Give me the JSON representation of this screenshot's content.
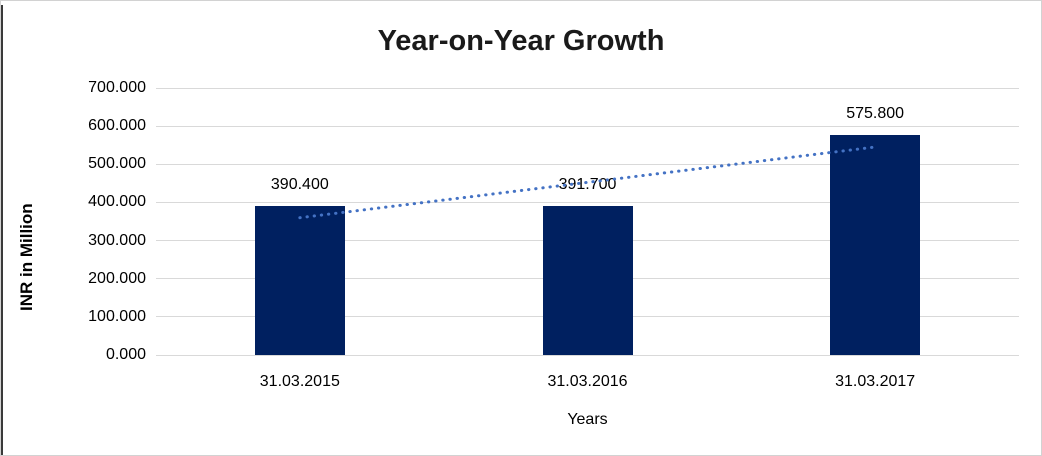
{
  "page": {
    "background": "#ffffff",
    "frame_border_color": "#d2d2d2",
    "left_edge_color": "#3a3a3a"
  },
  "chart_data": {
    "type": "bar",
    "title": "Year-on-Year Growth",
    "xlabel": "Years",
    "ylabel": "INR in Million",
    "categories": [
      "31.03.2015",
      "31.03.2016",
      "31.03.2017"
    ],
    "values": [
      390.4,
      391.7,
      575.8
    ],
    "value_labels": [
      "390.400",
      "391.700",
      "575.800"
    ],
    "ylim": [
      0,
      700
    ],
    "ytick_step": 100,
    "ytick_labels": [
      "0.000",
      "100.000",
      "200.000",
      "300.000",
      "400.000",
      "500.000",
      "600.000",
      "700.000"
    ],
    "grid": true,
    "legend_position": "none",
    "bar_color": "#002060",
    "gridline_color": "#d9d9d9",
    "trendline": {
      "kind": "linear",
      "style": "dotted",
      "color": "#4472c4"
    }
  }
}
